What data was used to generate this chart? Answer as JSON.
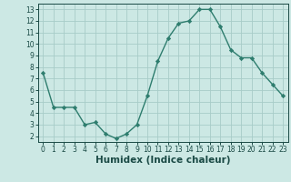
{
  "x": [
    0,
    1,
    2,
    3,
    4,
    5,
    6,
    7,
    8,
    9,
    10,
    11,
    12,
    13,
    14,
    15,
    16,
    17,
    18,
    19,
    20,
    21,
    22,
    23
  ],
  "y": [
    7.5,
    4.5,
    4.5,
    4.5,
    3.0,
    3.2,
    2.2,
    1.8,
    2.2,
    3.0,
    5.5,
    8.5,
    10.5,
    11.8,
    12.0,
    13.0,
    13.0,
    11.5,
    9.5,
    8.8,
    8.8,
    7.5,
    6.5,
    5.5
  ],
  "line_color": "#2e7d6e",
  "marker": "D",
  "marker_size": 2.2,
  "bg_color": "#cce8e4",
  "grid_color": "#a8ccc8",
  "xlabel": "Humidex (Indice chaleur)",
  "xlim": [
    -0.5,
    23.5
  ],
  "ylim": [
    1.5,
    13.5
  ],
  "yticks": [
    2,
    3,
    4,
    5,
    6,
    7,
    8,
    9,
    10,
    11,
    12,
    13
  ],
  "xticks": [
    0,
    1,
    2,
    3,
    4,
    5,
    6,
    7,
    8,
    9,
    10,
    11,
    12,
    13,
    14,
    15,
    16,
    17,
    18,
    19,
    20,
    21,
    22,
    23
  ],
  "tick_fontsize": 5.5,
  "xlabel_fontsize": 7.5,
  "tick_color": "#1a4a45",
  "axis_color": "#1a4a45",
  "line_width": 1.0
}
